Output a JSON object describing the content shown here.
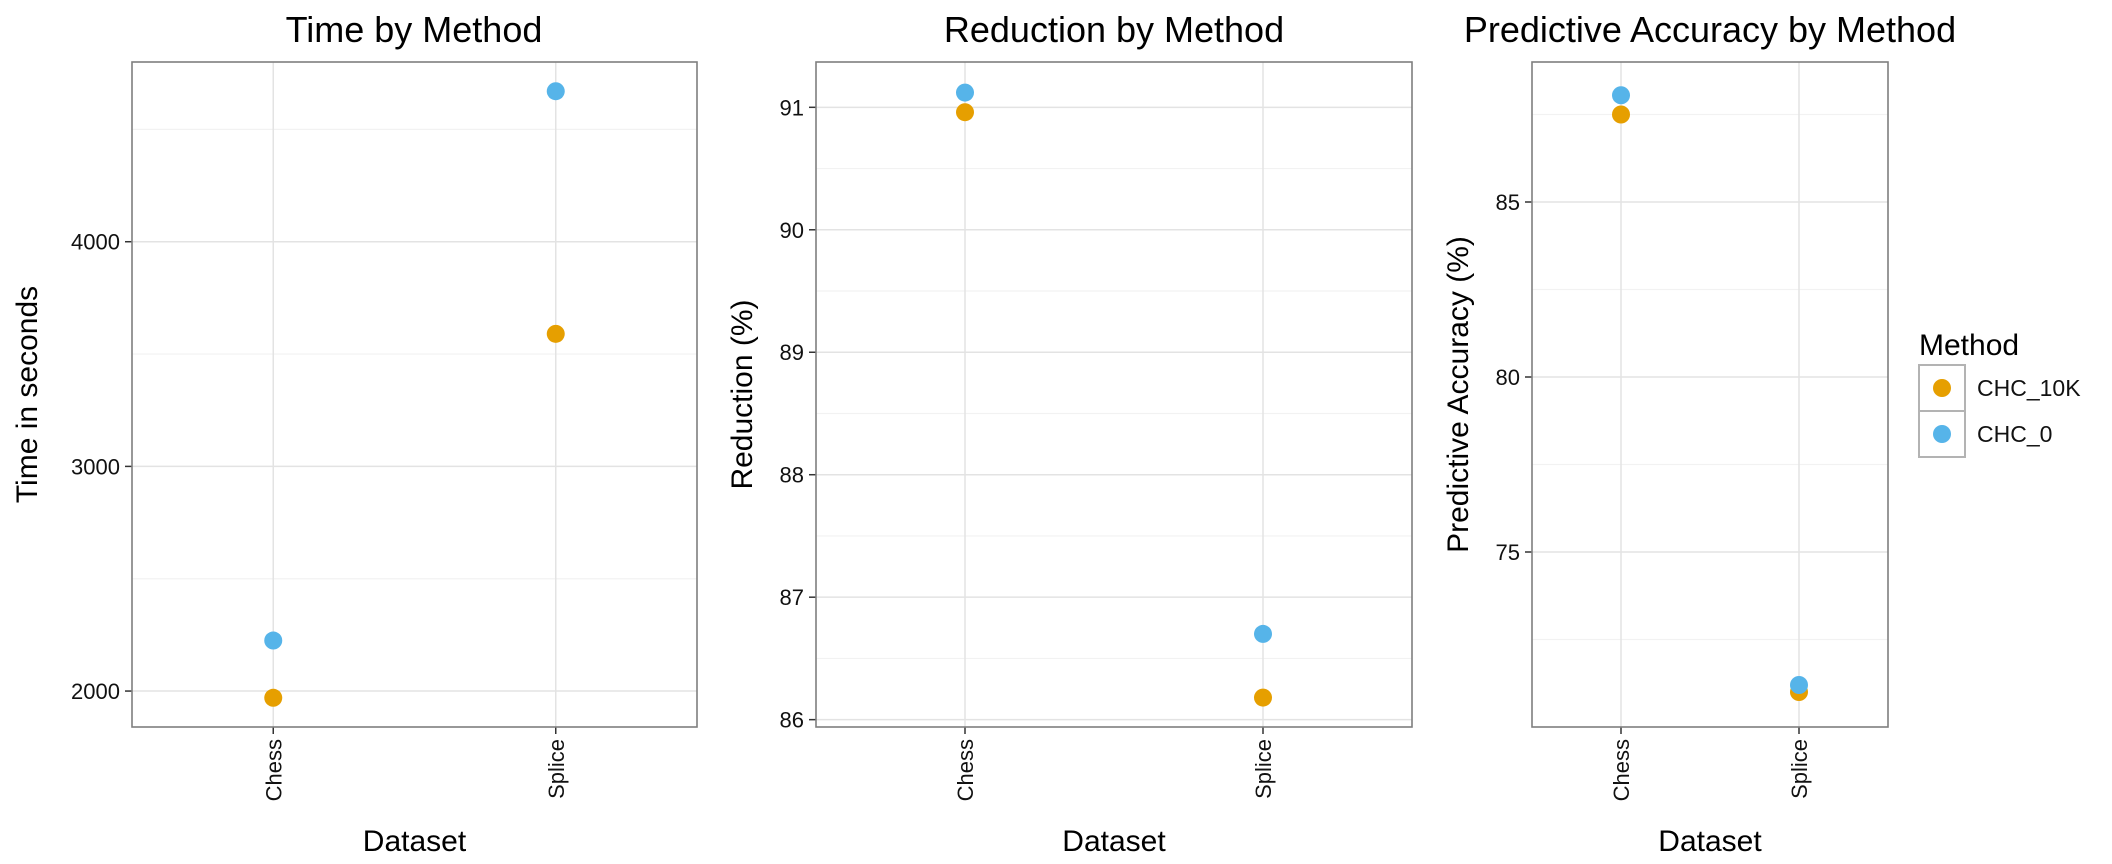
{
  "chart_data": [
    {
      "type": "scatter",
      "title": "Time by Method",
      "xlabel": "Dataset",
      "ylabel": "Time in seconds",
      "categories": [
        "Chess",
        "Splice"
      ],
      "yticks": [
        2000,
        3000,
        4000
      ],
      "ylim": [
        1840,
        4800
      ],
      "grid": true,
      "series": [
        {
          "name": "CHC_10K",
          "values": [
            1970,
            3590
          ]
        },
        {
          "name": "CHC_0",
          "values": [
            2225,
            4670
          ]
        }
      ]
    },
    {
      "type": "scatter",
      "title": "Reduction by Method",
      "xlabel": "Dataset",
      "ylabel": "Reduction (%)",
      "categories": [
        "Chess",
        "Splice"
      ],
      "yticks": [
        86,
        87,
        88,
        89,
        90,
        91
      ],
      "ylim": [
        85.94,
        91.37
      ],
      "grid": true,
      "series": [
        {
          "name": "CHC_10K",
          "values": [
            90.96,
            86.18
          ]
        },
        {
          "name": "CHC_0",
          "values": [
            91.12,
            86.7
          ]
        }
      ]
    },
    {
      "type": "scatter",
      "title": "Predictive Accuracy by Method",
      "xlabel": "Dataset",
      "ylabel": "Predictive Accuracy (%)",
      "categories": [
        "Chess",
        "Splice"
      ],
      "yticks": [
        75,
        80,
        85
      ],
      "ylim": [
        70.0,
        89.0
      ],
      "grid": true,
      "series": [
        {
          "name": "CHC_10K",
          "values": [
            87.5,
            71.0
          ]
        },
        {
          "name": "CHC_0",
          "values": [
            88.05,
            71.2
          ]
        }
      ]
    }
  ],
  "legend": {
    "title": "Method",
    "position": "right",
    "items": [
      {
        "label": "CHC_10K",
        "color": "#E69F00"
      },
      {
        "label": "CHC_0",
        "color": "#56B4E9"
      }
    ]
  },
  "colors": {
    "CHC_10K": "#E69F00",
    "CHC_0": "#56B4E9"
  }
}
